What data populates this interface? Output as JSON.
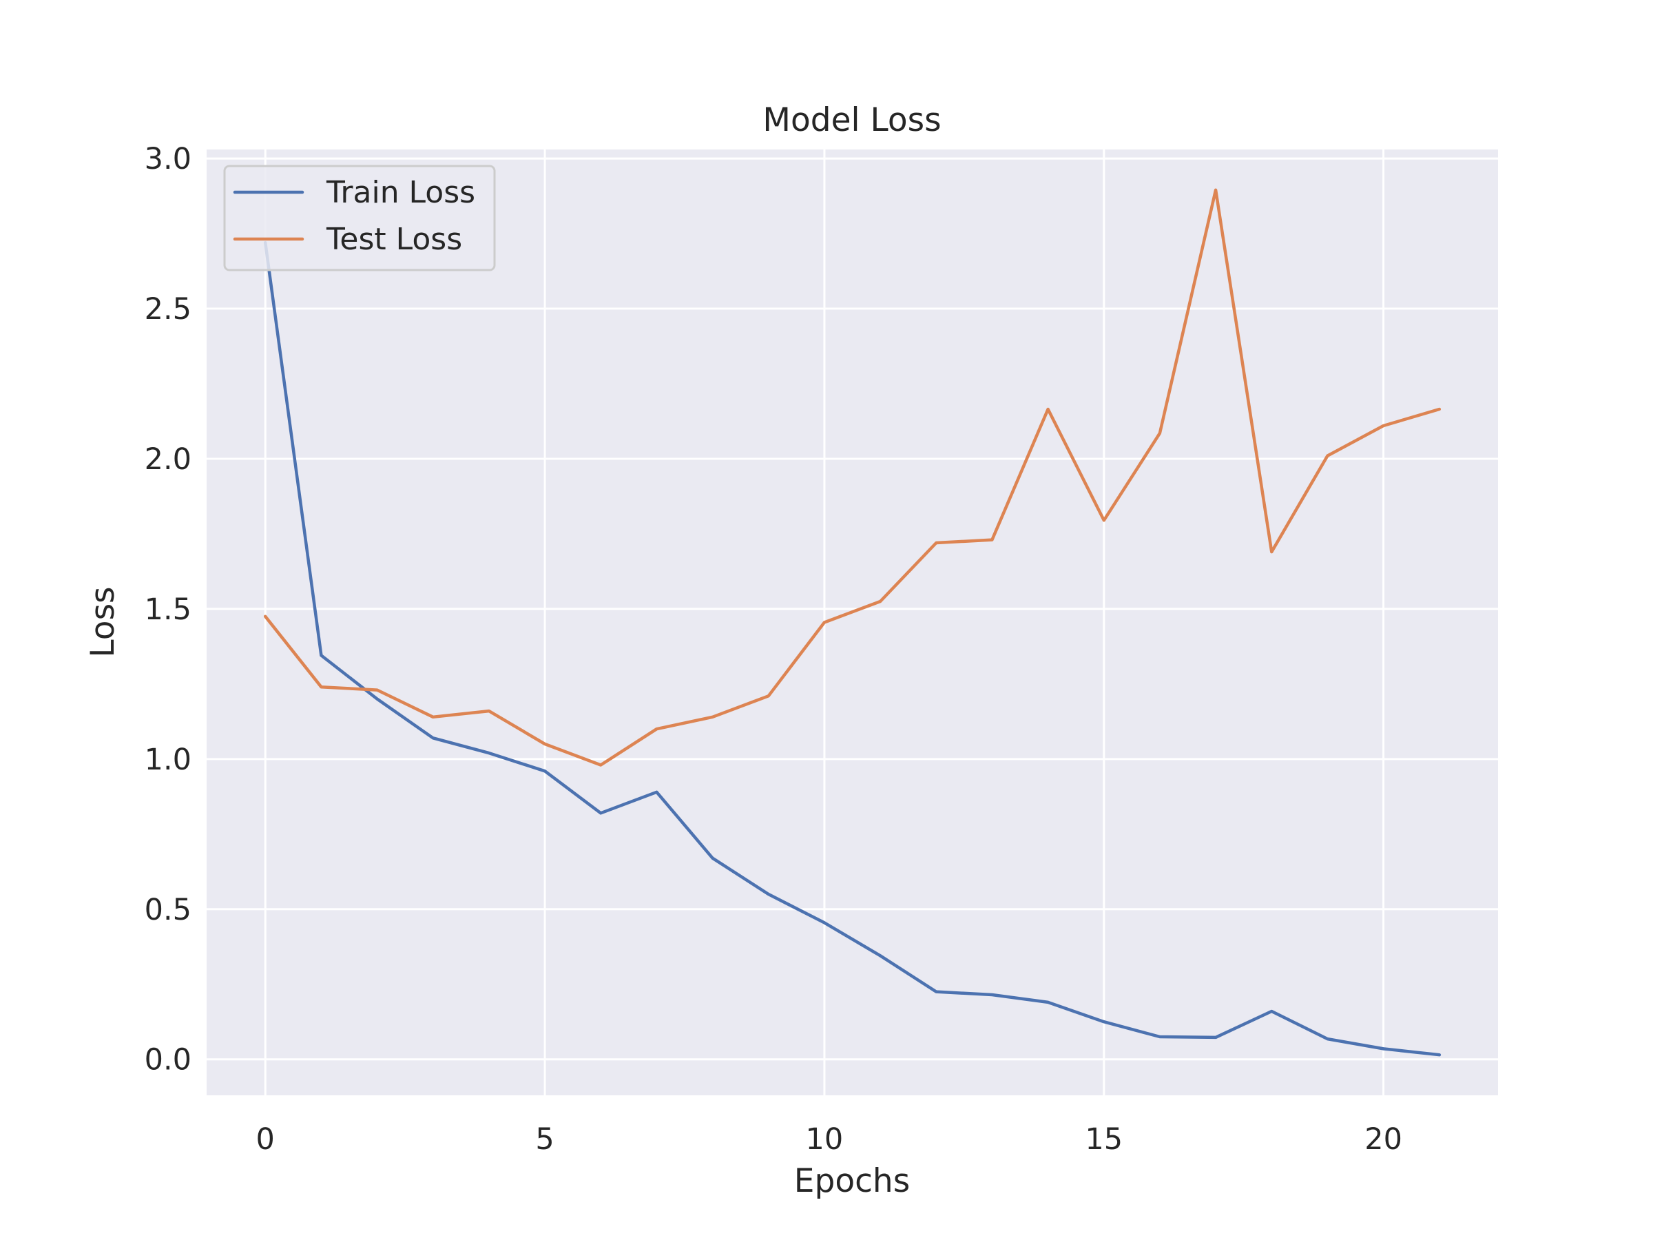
{
  "chart_data": {
    "type": "line",
    "title": "Model Loss",
    "xlabel": "Epochs",
    "ylabel": "Loss",
    "x": [
      0,
      1,
      2,
      3,
      4,
      5,
      6,
      7,
      8,
      9,
      10,
      11,
      12,
      13,
      14,
      15,
      16,
      17,
      18,
      19,
      20,
      21
    ],
    "series": [
      {
        "name": "Train Loss",
        "color": "#4c72b0",
        "values": [
          2.72,
          1.345,
          1.2,
          1.07,
          1.02,
          0.96,
          0.82,
          0.89,
          0.67,
          0.55,
          0.455,
          0.345,
          0.225,
          0.215,
          0.19,
          0.125,
          0.075,
          0.073,
          0.16,
          0.068,
          0.035,
          0.015
        ]
      },
      {
        "name": "Test Loss",
        "color": "#dd8452",
        "values": [
          1.475,
          1.24,
          1.23,
          1.14,
          1.16,
          1.05,
          0.98,
          1.1,
          1.14,
          1.21,
          1.455,
          1.525,
          1.72,
          1.73,
          2.165,
          1.795,
          2.085,
          2.895,
          1.69,
          2.01,
          2.11,
          2.165
        ]
      }
    ],
    "xticks": [
      0,
      5,
      10,
      15,
      20
    ],
    "yticks": [
      0.0,
      0.5,
      1.0,
      1.5,
      2.0,
      2.5,
      3.0
    ],
    "xtick_labels": [
      "0",
      "5",
      "10",
      "15",
      "20"
    ],
    "ytick_labels": [
      "0.0",
      "0.5",
      "1.0",
      "1.5",
      "2.0",
      "2.5",
      "3.0"
    ],
    "xlim": [
      -1.05,
      22.05
    ],
    "ylim": [
      -0.12,
      3.03
    ],
    "grid": true,
    "legend_position": "upper-left",
    "background_color": "#eaeaf2",
    "grid_color": "#ffffff"
  }
}
